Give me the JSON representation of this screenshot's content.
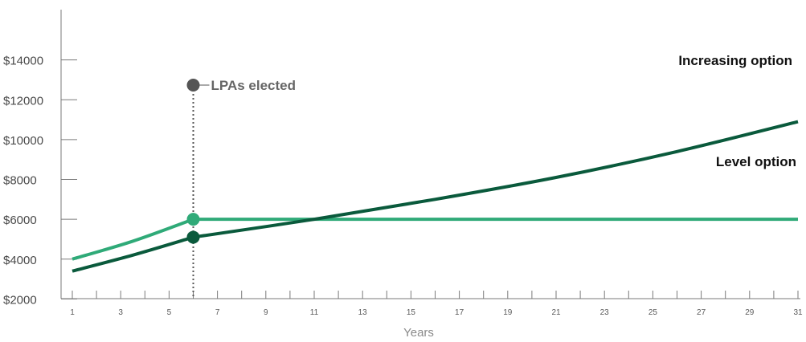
{
  "chart_data": {
    "type": "line",
    "xlabel": "Years",
    "ylabel": "",
    "x_ticks": [
      1,
      3,
      5,
      7,
      9,
      11,
      13,
      15,
      17,
      19,
      21,
      23,
      25,
      27,
      29,
      31
    ],
    "y_ticks": [
      "$2000",
      "$4000",
      "$6000",
      "$8000",
      "$10000",
      "$12000",
      "$14000"
    ],
    "y_tick_values": [
      2000,
      4000,
      6000,
      8000,
      10000,
      12000,
      14000
    ],
    "xlim": [
      1,
      31
    ],
    "ylim": [
      0,
      14000
    ],
    "series": [
      {
        "name": "Increasing option",
        "color": "#0a5a3c",
        "x": [
          1,
          6,
          11,
          16,
          21,
          26,
          31
        ],
        "y": [
          3400,
          5100,
          6000,
          7000,
          8100,
          9400,
          10900
        ]
      },
      {
        "name": "Level option",
        "color": "#2faa78",
        "x": [
          1,
          6,
          11,
          16,
          21,
          26,
          31
        ],
        "y": [
          4000,
          6000,
          6000,
          6000,
          6000,
          6000,
          6000
        ]
      }
    ],
    "annotation": {
      "label": "LPAs elected",
      "x": 6,
      "marker_color": "#555555"
    }
  }
}
